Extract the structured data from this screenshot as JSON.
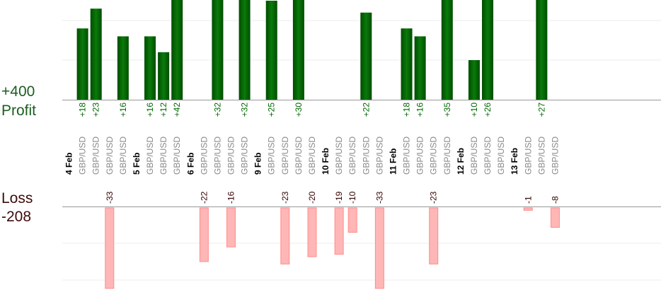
{
  "labels": {
    "profit_total": "+400",
    "profit_word": "Profit",
    "loss_word": "Loss",
    "loss_total": "-208"
  },
  "colors": {
    "profit_bar": "#006600",
    "profit_text": "#006600",
    "loss_bar": "#ffb6b6",
    "loss_bar_edge": "#ff8c8c",
    "loss_text": "#330000",
    "date_text": "#000000",
    "pair_text": "#888888",
    "axis": "#999999",
    "grid": "#eeeeee"
  },
  "chart_data": {
    "type": "bar",
    "slots": [
      {
        "date": "4 Feb"
      },
      {
        "pair": "GBP/USD",
        "profit": 18
      },
      {
        "pair": "GBP/USD",
        "profit": 23
      },
      {
        "pair": "GBP/USD",
        "loss": -33
      },
      {
        "pair": "GBP/USD",
        "profit": 16
      },
      {
        "date": "5 Feb"
      },
      {
        "pair": "GBP/USD",
        "profit": 16
      },
      {
        "pair": "GBP/USD",
        "profit": 12
      },
      {
        "pair": "GBP/USD",
        "profit": 42
      },
      {
        "date": "6 Feb"
      },
      {
        "pair": "GBP/USD",
        "loss": -22
      },
      {
        "pair": "GBP/USD",
        "profit": 32
      },
      {
        "pair": "GBP/USD",
        "loss": -16
      },
      {
        "pair": "GBP/USD",
        "profit": 32
      },
      {
        "date": "9 Feb"
      },
      {
        "pair": "GBP/USD",
        "profit": 25
      },
      {
        "pair": "GBP/USD",
        "loss": -23
      },
      {
        "pair": "GBP/USD",
        "profit": 30
      },
      {
        "pair": "GBP/USD",
        "loss": -20
      },
      {
        "date": "10 Feb"
      },
      {
        "pair": "GBP/USD",
        "loss": -19
      },
      {
        "pair": "GBP/USD",
        "loss": -10
      },
      {
        "pair": "GBP/USD",
        "profit": 22
      },
      {
        "pair": "GBP/USD",
        "loss": -33
      },
      {
        "date": "11 Feb"
      },
      {
        "pair": "GBP/USD",
        "profit": 18
      },
      {
        "pair": "GBP/USD",
        "profit": 16
      },
      {
        "pair": "GBP/USD",
        "loss": -23
      },
      {
        "pair": "GBP/USD",
        "profit": 35
      },
      {
        "date": "12 Feb"
      },
      {
        "pair": "GBP/USD",
        "profit": 10
      },
      {
        "pair": "GBP/USD",
        "profit": 26
      },
      {
        "pair": "GBP/USD"
      },
      {
        "date": "13 Feb"
      },
      {
        "pair": "GBP/USD",
        "loss": -1
      },
      {
        "pair": "GBP/USD",
        "profit": 27
      },
      {
        "pair": "GBP/USD",
        "loss": -8
      }
    ],
    "profit_ylim": [
      0,
      25
    ],
    "loss_ylim": [
      -22,
      0
    ],
    "grid": true
  }
}
